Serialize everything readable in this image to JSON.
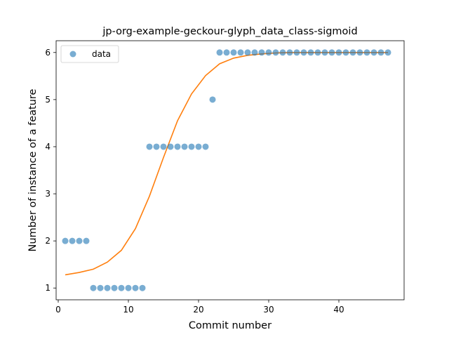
{
  "chart_data": {
    "type": "scatter",
    "title": "jp-org-example-geckour-glyph_data_class-sigmoid",
    "xlabel": "Commit number",
    "ylabel": "Number of instance of a feature",
    "xlim": [
      -0.3,
      49.3
    ],
    "ylim": [
      0.75,
      6.25
    ],
    "xticks": [
      0,
      10,
      20,
      30,
      40
    ],
    "yticks": [
      1,
      2,
      3,
      4,
      5,
      6
    ],
    "grid": false,
    "legend": {
      "placement": "top-left"
    },
    "series": [
      {
        "name": "data",
        "kind": "scatter",
        "color": "#1f77b4",
        "x": [
          1,
          2,
          3,
          4,
          5,
          6,
          7,
          8,
          9,
          10,
          11,
          12,
          13,
          14,
          15,
          16,
          17,
          18,
          19,
          20,
          21,
          22,
          23,
          24,
          25,
          26,
          27,
          28,
          29,
          30,
          31,
          32,
          33,
          34,
          35,
          36,
          37,
          38,
          39,
          40,
          41,
          42,
          43,
          44,
          45,
          46,
          47
        ],
        "y": [
          2,
          2,
          2,
          2,
          1,
          1,
          1,
          1,
          1,
          1,
          1,
          1,
          4,
          4,
          4,
          4,
          4,
          4,
          4,
          4,
          4,
          5,
          6,
          6,
          6,
          6,
          6,
          6,
          6,
          6,
          6,
          6,
          6,
          6,
          6,
          6,
          6,
          6,
          6,
          6,
          6,
          6,
          6,
          6,
          6,
          6,
          6
        ]
      },
      {
        "kind": "line",
        "color": "#ff7f0e",
        "x": [
          1,
          3,
          5,
          7,
          9,
          11,
          13,
          15,
          17,
          19,
          21,
          23,
          25,
          27,
          29,
          31,
          33,
          35,
          37,
          39,
          41,
          43,
          45,
          47
        ],
        "y": [
          1.28,
          1.33,
          1.4,
          1.55,
          1.8,
          2.26,
          2.95,
          3.77,
          4.55,
          5.12,
          5.51,
          5.76,
          5.88,
          5.94,
          5.97,
          5.99,
          6.0,
          6.0,
          6.0,
          6.0,
          6.0,
          6.0,
          6.0,
          6.0
        ]
      }
    ]
  }
}
